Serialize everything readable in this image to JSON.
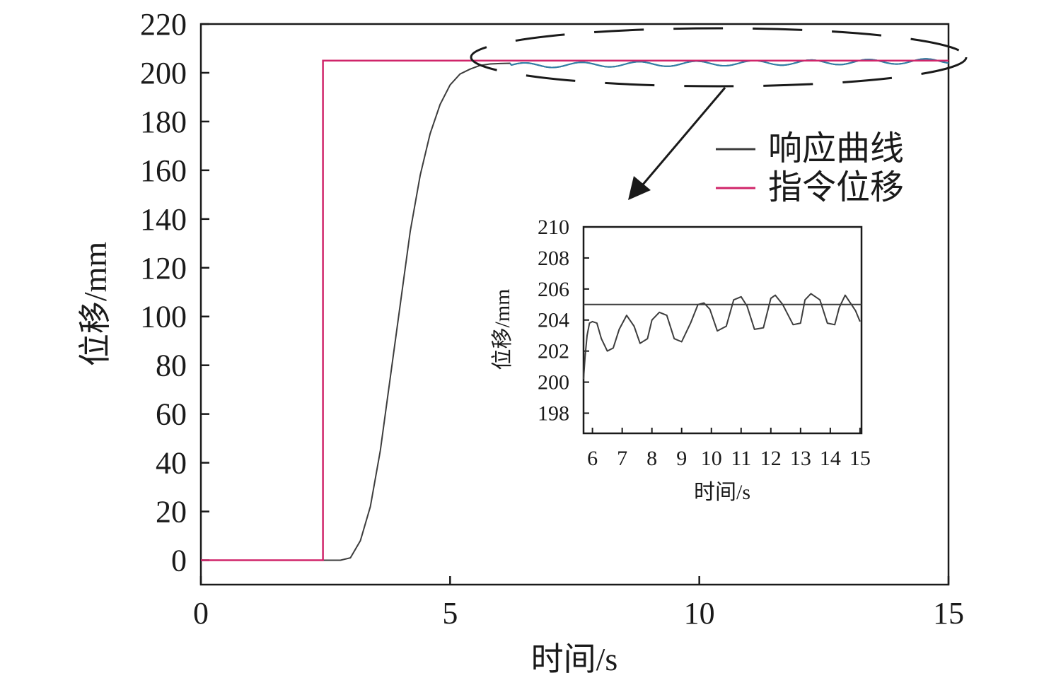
{
  "colors": {
    "response": "#3d3d3d",
    "command": "#d0256a",
    "highlight_wave": "#2e7fa8",
    "axis": "#1a1a1a"
  },
  "legend": {
    "position": "right-middle",
    "entries": [
      {
        "label": "响应曲线",
        "color": "#3d3d3d"
      },
      {
        "label": "指令位移",
        "color": "#d0256a"
      }
    ]
  },
  "chart_data": [
    {
      "type": "line",
      "xlabel": "时间/s",
      "ylabel": "位移/mm",
      "xlim": [
        0,
        15
      ],
      "ylim": [
        -10,
        220
      ],
      "xticks": [
        0,
        5,
        10,
        15
      ],
      "yticks": [
        0,
        20,
        40,
        60,
        80,
        100,
        120,
        140,
        160,
        180,
        200,
        220
      ],
      "grid": false,
      "series": [
        {
          "name": "指令位移",
          "color": "#d0256a",
          "x": [
            0,
            2.45,
            2.45,
            15
          ],
          "y": [
            0,
            0,
            205,
            205
          ]
        },
        {
          "name": "响应曲线",
          "color": "#3d3d3d",
          "x": [
            0,
            2.8,
            3.0,
            3.2,
            3.4,
            3.6,
            3.8,
            4.0,
            4.2,
            4.4,
            4.6,
            4.8,
            5.0,
            5.2,
            5.4,
            5.6,
            5.8,
            6.0,
            6.2
          ],
          "y": [
            0,
            0,
            1,
            8,
            22,
            45,
            75,
            105,
            135,
            158,
            175,
            187,
            195,
            199.5,
            201.5,
            203,
            203.6,
            203.8,
            203.9
          ],
          "oscillation": {
            "x_start": 6.2,
            "x_end": 15,
            "period": 1.15,
            "center_start": 203.0,
            "center_end": 204.8,
            "amplitude_start": 1.0,
            "amplitude_end": 1.0
          }
        }
      ],
      "annotations": [
        {
          "type": "dashed-ellipse",
          "x_range": [
            5.4,
            15.4
          ],
          "y_center": 205
        },
        {
          "type": "arrow",
          "from": "ellipse",
          "to": "inset"
        }
      ]
    },
    {
      "type": "line",
      "role": "inset",
      "xlabel": "时间/s",
      "ylabel": "位移/mm",
      "xlim": [
        5.7,
        15.05
      ],
      "ylim": [
        196.7,
        210
      ],
      "xticks": [
        6,
        7,
        8,
        9,
        10,
        11,
        12,
        13,
        14,
        15
      ],
      "yticks": [
        198,
        200,
        202,
        204,
        206,
        208,
        210
      ],
      "grid": false,
      "series": [
        {
          "name": "指令位移",
          "color": "#3d3d3d",
          "x": [
            5.7,
            15.05
          ],
          "y": [
            205,
            205
          ]
        },
        {
          "name": "响应曲线",
          "color": "#3d3d3d",
          "x": [
            5.7,
            5.75,
            5.82,
            5.9,
            6.0,
            6.15,
            6.3,
            6.5,
            6.7,
            6.9,
            7.15,
            7.4,
            7.6,
            7.85,
            8.0,
            8.25,
            8.5,
            8.75,
            9.0,
            9.3,
            9.55,
            9.75,
            9.95,
            10.2,
            10.5,
            10.75,
            11.0,
            11.2,
            11.45,
            11.75,
            12.0,
            12.15,
            12.4,
            12.75,
            13.0,
            13.15,
            13.35,
            13.65,
            13.9,
            14.15,
            14.3,
            14.5,
            14.85,
            15.0
          ],
          "y": [
            200.2,
            201.6,
            203.0,
            203.8,
            203.9,
            203.8,
            202.8,
            202.0,
            202.2,
            203.4,
            204.3,
            203.6,
            202.5,
            202.8,
            204.0,
            204.5,
            204.3,
            202.8,
            202.6,
            203.8,
            205.0,
            205.1,
            204.7,
            203.3,
            203.6,
            205.3,
            205.5,
            204.9,
            203.4,
            203.5,
            205.4,
            205.6,
            205.0,
            203.7,
            203.8,
            205.3,
            205.7,
            205.3,
            203.8,
            203.7,
            204.8,
            205.6,
            204.6,
            203.9
          ]
        }
      ]
    }
  ]
}
